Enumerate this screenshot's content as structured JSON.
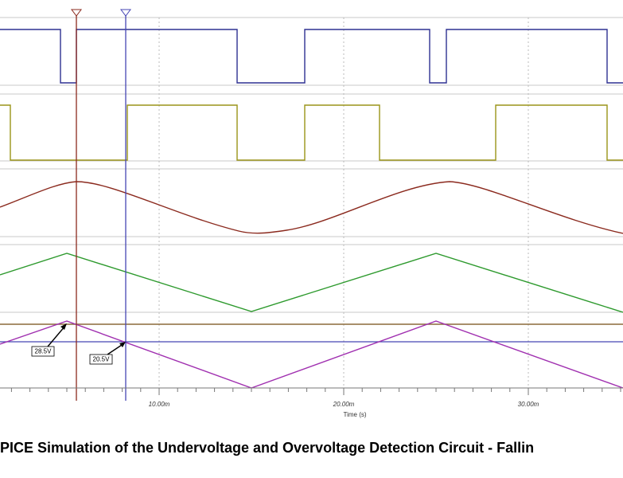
{
  "plot": {
    "x_axis": {
      "ticks": [
        "10.00m",
        "20.00m",
        "30.00m"
      ],
      "label": "Time (s)"
    },
    "annotations": [
      "28.5V",
      "20.5V"
    ]
  },
  "caption": "PICE Simulation of the Undervoltage and Overvoltage Detection Circuit - Fallin"
}
